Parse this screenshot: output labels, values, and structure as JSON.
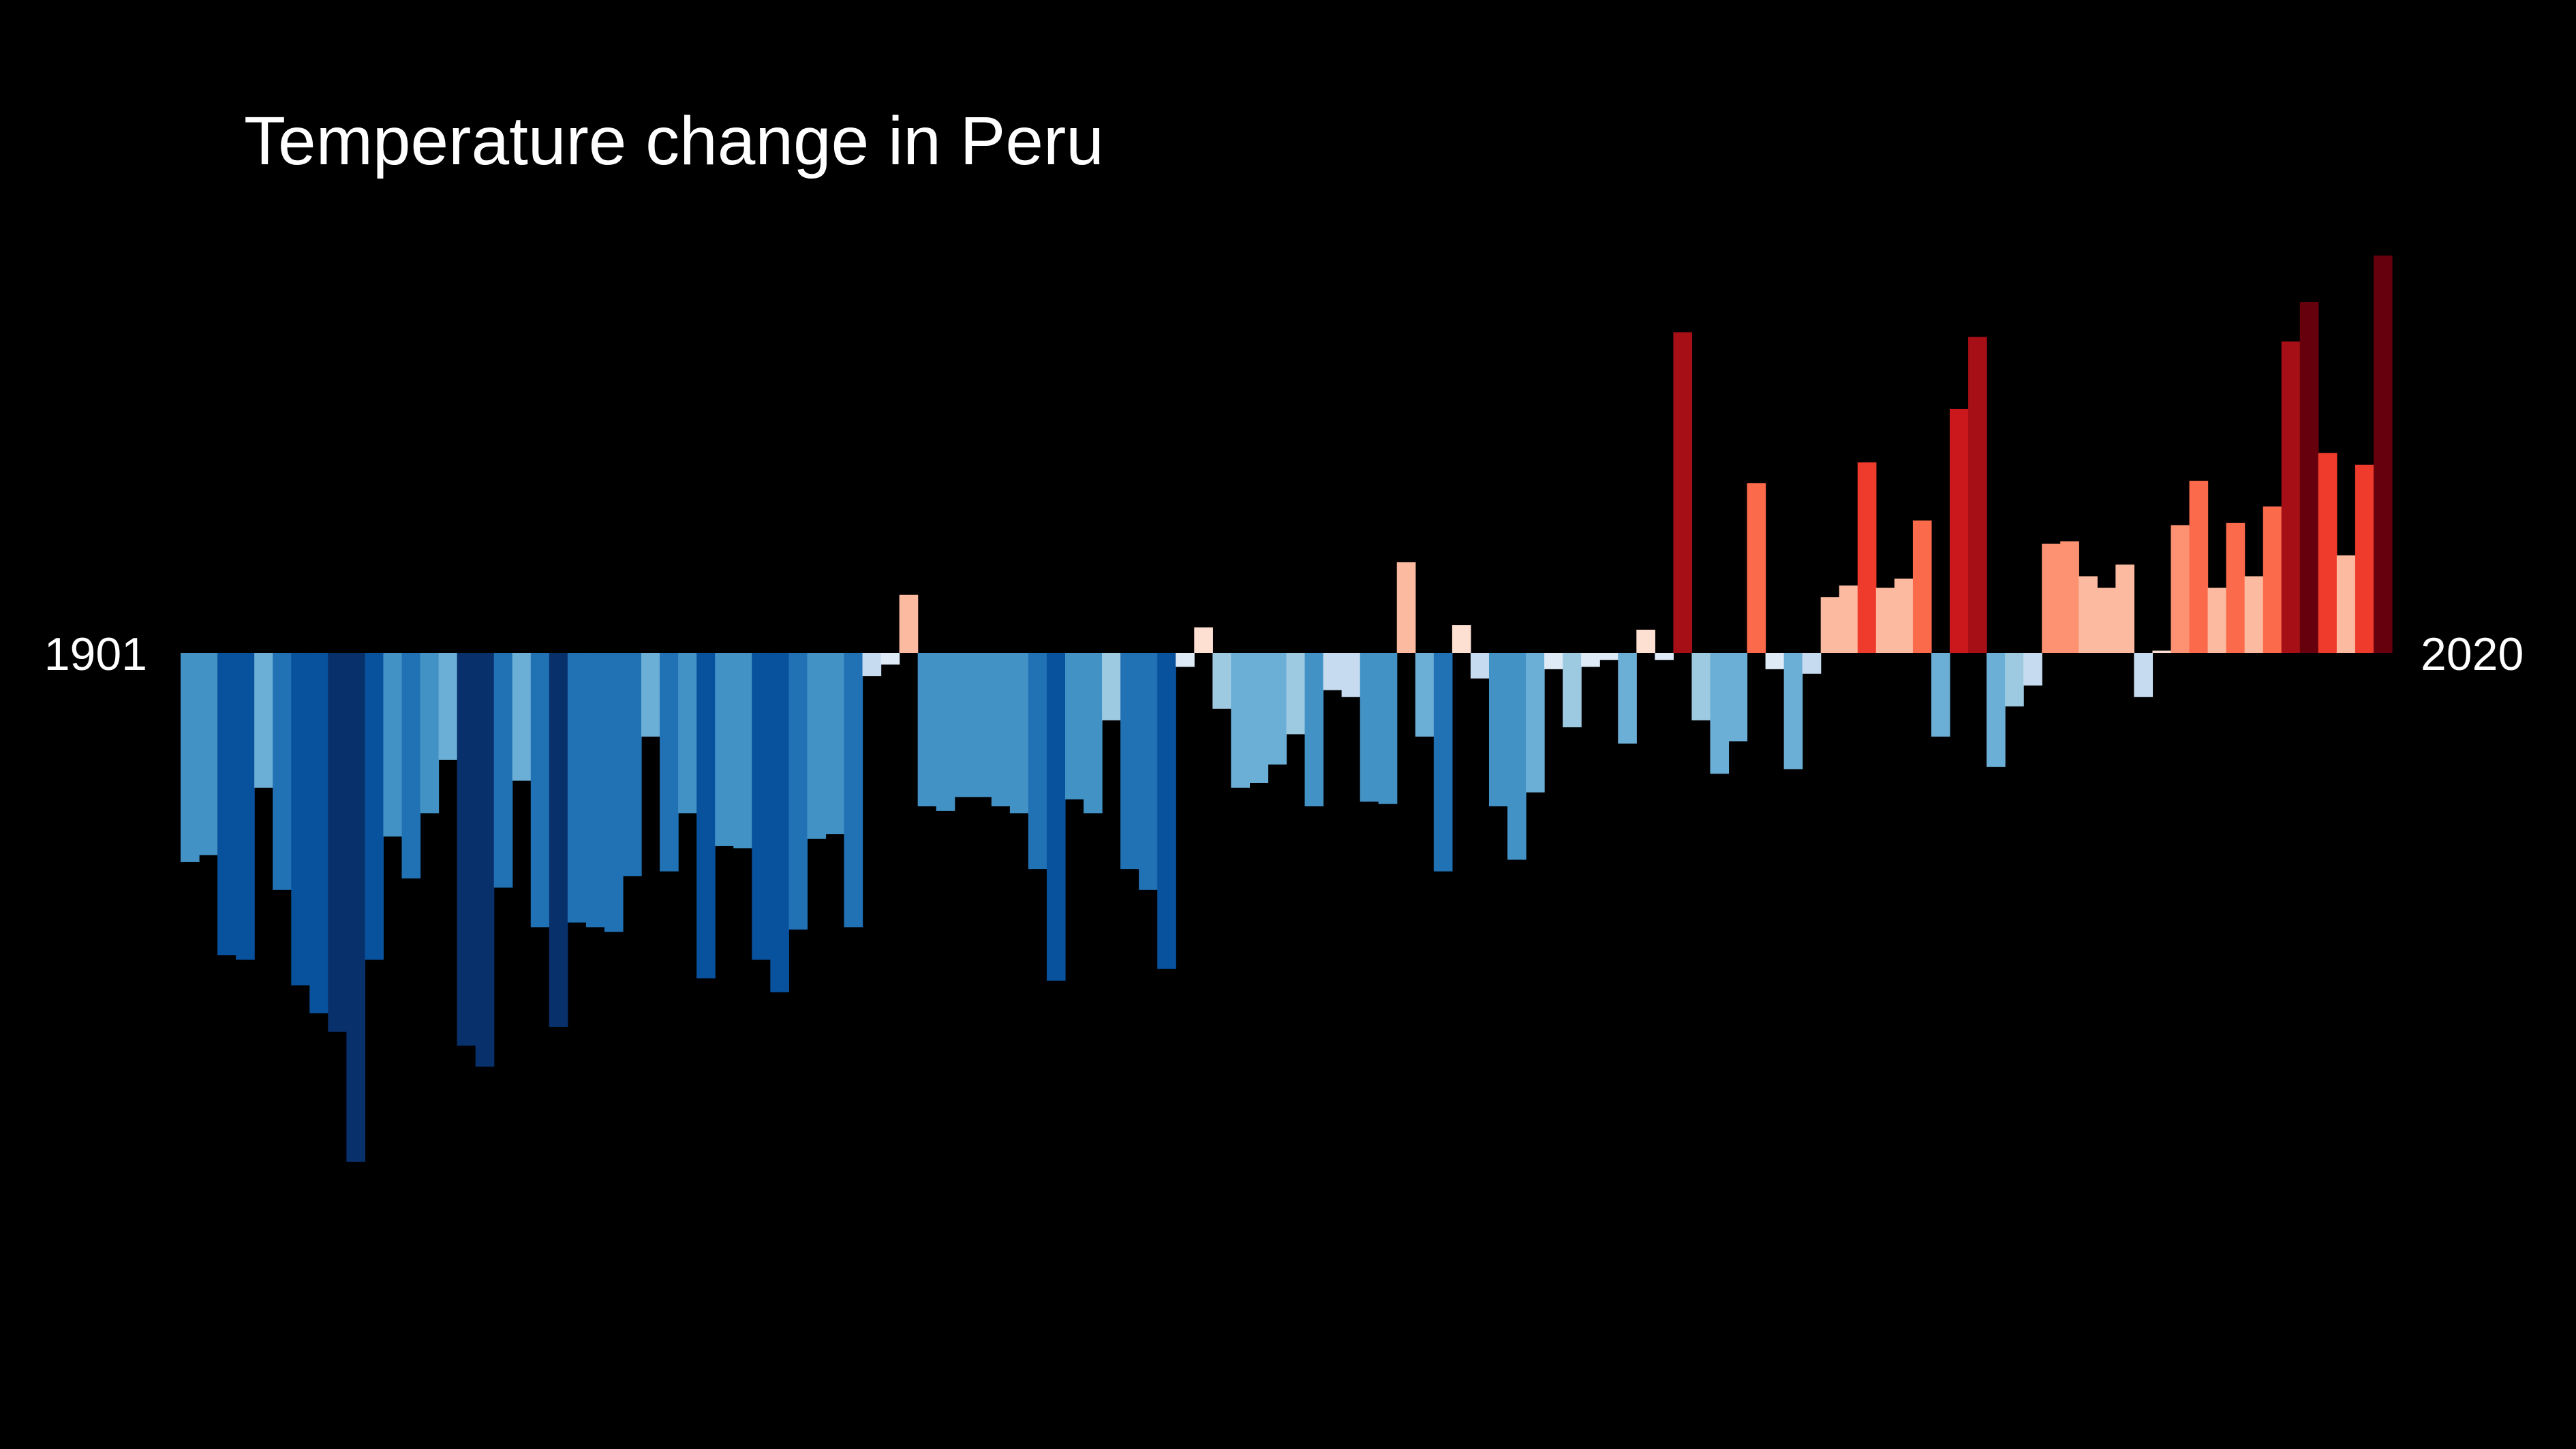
{
  "chart_data": {
    "type": "bar",
    "title": "Temperature change in Peru",
    "start_label": "1901",
    "end_label": "2020",
    "x_range": [
      1901,
      2020
    ],
    "ylim": [
      -2.75,
      2.2
    ],
    "xlabel": "",
    "ylabel": "",
    "grid": false,
    "legend": "none",
    "color_scale": {
      "cold": [
        "#08306b",
        "#08519c",
        "#2171b5",
        "#4292c6",
        "#6baed6",
        "#9ecae1",
        "#c6dbef",
        "#deebf7"
      ],
      "warm": [
        "#fee0d2",
        "#fcbba1",
        "#fc9272",
        "#fb6a4a",
        "#ef3b2c",
        "#cb181d",
        "#a50f15",
        "#67000d"
      ]
    },
    "x": [
      1901,
      1902,
      1903,
      1904,
      1905,
      1906,
      1907,
      1908,
      1909,
      1910,
      1911,
      1912,
      1913,
      1914,
      1915,
      1916,
      1917,
      1918,
      1919,
      1920,
      1921,
      1922,
      1923,
      1924,
      1925,
      1926,
      1927,
      1928,
      1929,
      1930,
      1931,
      1932,
      1933,
      1934,
      1935,
      1936,
      1937,
      1938,
      1939,
      1940,
      1941,
      1942,
      1943,
      1944,
      1945,
      1946,
      1947,
      1948,
      1949,
      1950,
      1951,
      1952,
      1953,
      1954,
      1955,
      1956,
      1957,
      1958,
      1959,
      1960,
      1961,
      1962,
      1963,
      1964,
      1965,
      1966,
      1967,
      1968,
      1969,
      1970,
      1971,
      1972,
      1973,
      1974,
      1975,
      1976,
      1977,
      1978,
      1979,
      1980,
      1981,
      1982,
      1983,
      1984,
      1985,
      1986,
      1987,
      1988,
      1989,
      1990,
      1991,
      1992,
      1993,
      1994,
      1995,
      1996,
      1997,
      1998,
      1999,
      2000,
      2001,
      2002,
      2003,
      2004,
      2005,
      2006,
      2007,
      2008,
      2009,
      2010,
      2011,
      2012,
      2013,
      2014,
      2015,
      2016,
      2017,
      2018,
      2019,
      2020
    ],
    "values": [
      -0.9,
      -0.87,
      -1.3,
      -1.32,
      -0.58,
      -1.02,
      -1.43,
      -1.55,
      -1.63,
      -2.19,
      -1.32,
      -0.79,
      -0.97,
      -0.69,
      -0.46,
      -1.69,
      -1.78,
      -1.01,
      -0.55,
      -1.18,
      -1.61,
      -1.16,
      -1.18,
      -1.2,
      -0.96,
      -0.36,
      -0.94,
      -0.69,
      -1.4,
      -0.83,
      -0.84,
      -1.32,
      -1.46,
      -1.19,
      -0.8,
      -0.78,
      -1.18,
      -0.1,
      -0.05,
      0.25,
      -0.66,
      -0.68,
      -0.62,
      -0.62,
      -0.66,
      -0.69,
      -0.93,
      -1.41,
      -0.63,
      -0.69,
      -0.29,
      -0.93,
      -1.02,
      -1.36,
      -0.06,
      0.11,
      -0.24,
      -0.58,
      -0.56,
      -0.48,
      -0.35,
      -0.66,
      -0.16,
      -0.19,
      -0.64,
      -0.65,
      0.39,
      -0.36,
      -0.94,
      0.12,
      -0.11,
      -0.66,
      -0.89,
      -0.6,
      -0.07,
      -0.32,
      -0.06,
      -0.03,
      -0.39,
      0.1,
      -0.03,
      1.38,
      -0.29,
      -0.52,
      -0.38,
      0.73,
      -0.07,
      -0.5,
      -0.09,
      0.24,
      0.29,
      0.82,
      0.28,
      0.32,
      0.57,
      -0.36,
      1.05,
      1.36,
      -0.49,
      -0.23,
      -0.14,
      0.47,
      0.48,
      0.33,
      0.28,
      0.38,
      -0.19,
      0.01,
      0.55,
      0.74,
      0.28,
      0.56,
      0.33,
      0.63,
      1.34,
      1.51,
      0.86,
      0.42,
      0.81,
      1.71
    ]
  }
}
